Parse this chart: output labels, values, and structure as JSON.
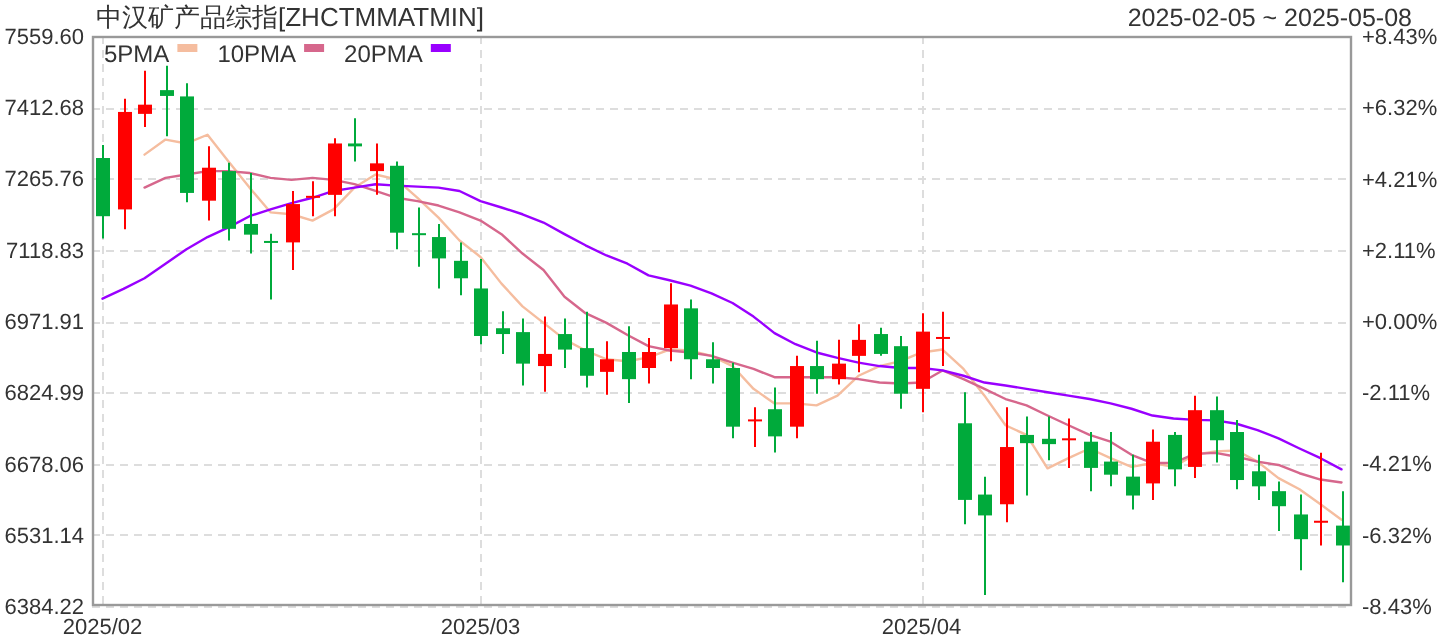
{
  "chart_data": {
    "type": "candlestick",
    "title": "中汉矿产品综指[ZHCTMMATMIN]",
    "subtitle": "2025-02-05 ~ 2025-05-08",
    "categories": [
      "2025/02",
      null,
      null,
      null,
      null,
      null,
      null,
      null,
      null,
      null,
      null,
      null,
      null,
      null,
      null,
      null,
      null,
      null,
      "2025/03",
      null,
      null,
      null,
      null,
      null,
      null,
      null,
      null,
      null,
      null,
      null,
      null,
      null,
      null,
      null,
      null,
      null,
      null,
      null,
      null,
      "2025/04",
      null,
      null,
      null,
      null,
      null,
      null,
      null,
      null,
      null,
      null,
      null,
      null,
      null,
      null,
      null,
      null,
      null,
      null,
      null,
      null
    ],
    "ohlc": [
      [
        7308,
        7335,
        7142,
        7188
      ],
      [
        7202,
        7430,
        7161,
        7403
      ],
      [
        7399,
        7488,
        7372,
        7418
      ],
      [
        7448,
        7498,
        7353,
        7436
      ],
      [
        7435,
        7462,
        7217,
        7236
      ],
      [
        7220,
        7332,
        7179,
        7288
      ],
      [
        7281,
        7298,
        7138,
        7162
      ],
      [
        7172,
        7277,
        7111,
        7150
      ],
      [
        7137,
        7152,
        7016,
        7134
      ],
      [
        7134,
        7240,
        7077,
        7213
      ],
      [
        7226,
        7260,
        7188,
        7230
      ],
      [
        7232,
        7349,
        7188,
        7338
      ],
      [
        7338,
        7390,
        7301,
        7332
      ],
      [
        7281,
        7338,
        7232,
        7297
      ],
      [
        7292,
        7301,
        7120,
        7154
      ],
      [
        7153,
        7206,
        7084,
        7150
      ],
      [
        7145,
        7172,
        7039,
        7101
      ],
      [
        7096,
        7134,
        7025,
        7060
      ],
      [
        7039,
        7100,
        6924,
        6941
      ],
      [
        6957,
        6992,
        6904,
        6945
      ],
      [
        6949,
        6977,
        6839,
        6884
      ],
      [
        6879,
        6981,
        6826,
        6904
      ],
      [
        6945,
        6977,
        6875,
        6913
      ],
      [
        6916,
        6991,
        6835,
        6859
      ],
      [
        6867,
        6930,
        6820,
        6893
      ],
      [
        6908,
        6961,
        6803,
        6852
      ],
      [
        6875,
        6937,
        6843,
        6908
      ],
      [
        6916,
        7050,
        6889,
        7006
      ],
      [
        6998,
        7016,
        6852,
        6893
      ],
      [
        6893,
        6928,
        6843,
        6875
      ],
      [
        6875,
        6886,
        6730,
        6754
      ],
      [
        6767,
        6794,
        6712,
        6769
      ],
      [
        6790,
        6835,
        6701,
        6734
      ],
      [
        6754,
        6900,
        6730,
        6879
      ],
      [
        6879,
        6931,
        6822,
        6852
      ],
      [
        6852,
        6933,
        6841,
        6884
      ],
      [
        6900,
        6965,
        6866,
        6933
      ],
      [
        6945,
        6958,
        6900,
        6904
      ],
      [
        6920,
        6941,
        6791,
        6822
      ],
      [
        6832,
        6988,
        6784,
        6950
      ],
      [
        6937,
        6991,
        6879,
        6939
      ],
      [
        6761,
        6825,
        6553,
        6603
      ],
      [
        6614,
        6651,
        6407,
        6571
      ],
      [
        6594,
        6794,
        6557,
        6712
      ],
      [
        6737,
        6775,
        6612,
        6720
      ],
      [
        6729,
        6775,
        6685,
        6718
      ],
      [
        6727,
        6771,
        6669,
        6730
      ],
      [
        6723,
        6743,
        6621,
        6669
      ],
      [
        6682,
        6743,
        6631,
        6655
      ],
      [
        6651,
        6696,
        6583,
        6612
      ],
      [
        6637,
        6748,
        6603,
        6723
      ],
      [
        6737,
        6743,
        6631,
        6666
      ],
      [
        6671,
        6818,
        6648,
        6788
      ],
      [
        6788,
        6816,
        6680,
        6726
      ],
      [
        6743,
        6768,
        6625,
        6644
      ],
      [
        6662,
        6696,
        6603,
        6631
      ],
      [
        6621,
        6641,
        6539,
        6590
      ],
      [
        6573,
        6614,
        6458,
        6522
      ],
      [
        6557,
        6700,
        6509,
        6560
      ],
      [
        6550,
        6621,
        6433,
        6509
      ]
    ],
    "series": [
      {
        "name": "5PMA",
        "type": "line",
        "color": "#f5bd9f",
        "values": [
          null,
          null,
          7315,
          7346,
          7338,
          7356,
          7301,
          7247,
          7196,
          7192,
          7179,
          7202,
          7247,
          7274,
          7264,
          7226,
          7185,
          7138,
          7104,
          7049,
          7002,
          6968,
          6934,
          6911,
          6893,
          6889,
          6897,
          6913,
          6911,
          6900,
          6879,
          6832,
          6802,
          6802,
          6798,
          6818,
          6859,
          6879,
          6889,
          6907,
          6913,
          6873,
          6818,
          6757,
          6737,
          6668,
          6689,
          6709,
          6689,
          6671,
          6679,
          6671,
          6696,
          6703,
          6705,
          6682,
          6648,
          6625,
          6594,
          6562
        ]
      },
      {
        "name": "10PMA",
        "type": "line",
        "color": "#d6678c",
        "values": [
          null,
          null,
          7247,
          7267,
          7274,
          7281,
          7281,
          7277,
          7267,
          7263,
          7267,
          7263,
          7254,
          7240,
          7226,
          7219,
          7210,
          7196,
          7179,
          7151,
          7111,
          7077,
          7022,
          6988,
          6968,
          6943,
          6920,
          6911,
          6907,
          6900,
          6886,
          6873,
          6856,
          6856,
          6856,
          6856,
          6852,
          6845,
          6843,
          6845,
          6870,
          6852,
          6832,
          6811,
          6798,
          6777,
          6757,
          6737,
          6723,
          6696,
          6679,
          6679,
          6698,
          6700,
          6692,
          6682,
          6675,
          6658,
          6645,
          6639
        ]
      },
      {
        "name": "20PMA",
        "type": "line",
        "color": "#9900ff",
        "values": [
          7018,
          7038,
          7060,
          7090,
          7120,
          7145,
          7165,
          7188,
          7202,
          7215,
          7226,
          7240,
          7247,
          7254,
          7251,
          7249,
          7247,
          7240,
          7219,
          7206,
          7192,
          7175,
          7151,
          7128,
          7107,
          7090,
          7066,
          7056,
          7045,
          7029,
          7009,
          6981,
          6947,
          6924,
          6907,
          6896,
          6886,
          6879,
          6875,
          6875,
          6870,
          6859,
          6845,
          6839,
          6832,
          6825,
          6818,
          6811,
          6802,
          6791,
          6777,
          6771,
          6768,
          6767,
          6760,
          6747,
          6730,
          6709,
          6689,
          6666
        ]
      }
    ],
    "ylim": [
      6384.22,
      7559.6
    ],
    "yticks": [
      {
        "value": 7559.6,
        "label": "7559.60"
      },
      7412.68,
      7265.76,
      7118.83,
      6971.91,
      6824.99,
      6678.06,
      6531.14,
      6384.22
    ],
    "y2lim": [
      -8.43,
      8.43
    ],
    "y2ticks": [
      {
        "value": 8.43,
        "label": "+8.43%"
      },
      {
        "value": 6.32,
        "label": "+6.32%"
      },
      {
        "value": 4.21,
        "label": "+4.21%"
      },
      {
        "value": 2.11,
        "label": "+2.11%"
      },
      {
        "value": 0,
        "label": "+0.00%"
      },
      {
        "value": -2.11,
        "label": "-2.11%"
      },
      {
        "value": -4.21,
        "label": "-4.21%"
      },
      {
        "value": -6.32,
        "label": "-6.32%"
      },
      {
        "value": -8.43,
        "label": "-8.43%"
      }
    ],
    "grid": true,
    "legend": "top left"
  }
}
